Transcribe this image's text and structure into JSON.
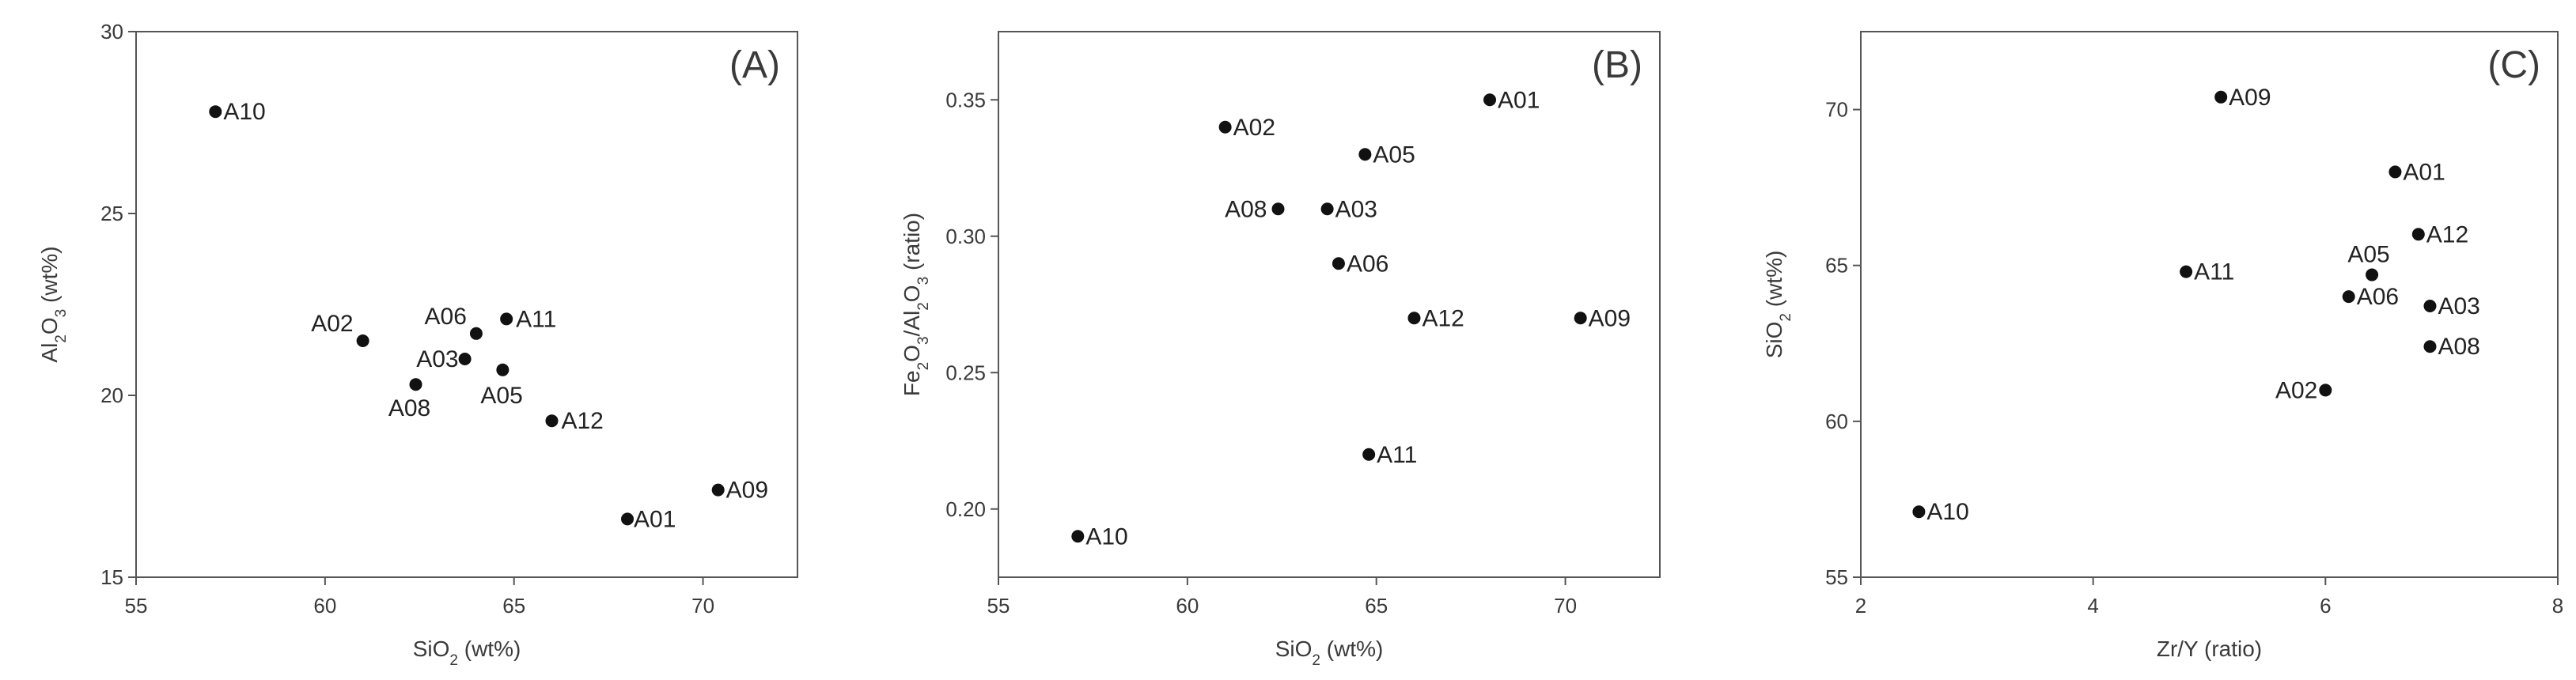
{
  "chart_data": [
    {
      "type": "scatter",
      "panel_label": "(A)",
      "xlabel": {
        "base": "SiO",
        "sub": "2",
        "tail": " (wt%)"
      },
      "ylabel": {
        "base": "Al",
        "sub": "2",
        "mid": "O",
        "sub2": "3",
        "tail": " (wt%)"
      },
      "xlim": [
        55,
        72.5
      ],
      "ylim": [
        15,
        30
      ],
      "xticks": [
        "55",
        "60",
        "65",
        "70"
      ],
      "yticks": [
        "15",
        "20",
        "25",
        "30"
      ],
      "points": [
        {
          "label": "A10",
          "x": 57.1,
          "y": 27.8
        },
        {
          "label": "A02",
          "x": 61.0,
          "y": 21.5
        },
        {
          "label": "A06",
          "x": 64.0,
          "y": 21.7
        },
        {
          "label": "A11",
          "x": 64.8,
          "y": 22.1
        },
        {
          "label": "A03",
          "x": 63.7,
          "y": 21.0
        },
        {
          "label": "A08",
          "x": 62.4,
          "y": 20.3
        },
        {
          "label": "A05",
          "x": 64.7,
          "y": 20.7
        },
        {
          "label": "A12",
          "x": 66.0,
          "y": 19.3
        },
        {
          "label": "A09",
          "x": 70.4,
          "y": 17.4
        },
        {
          "label": "A01",
          "x": 68.0,
          "y": 16.6
        }
      ]
    },
    {
      "type": "scatter",
      "panel_label": "(B)",
      "xlabel": {
        "base": "SiO",
        "sub": "2",
        "tail": " (wt%)"
      },
      "ylabel": {
        "base": "Fe",
        "sub": "2",
        "mid": "O",
        "sub2": "3",
        "mid2": "/Al",
        "sub3": "2",
        "mid3": "O",
        "sub4": "3",
        "tail": " (ratio)"
      },
      "xlim": [
        55,
        72.5
      ],
      "ylim": [
        0.175,
        0.375
      ],
      "xticks": [
        "55",
        "60",
        "65",
        "70"
      ],
      "yticks": [
        "0.20",
        "0.25",
        "0.30",
        "0.35"
      ],
      "points": [
        {
          "label": "A01",
          "x": 68.0,
          "y": 0.35
        },
        {
          "label": "A02",
          "x": 61.0,
          "y": 0.34
        },
        {
          "label": "A05",
          "x": 64.7,
          "y": 0.33
        },
        {
          "label": "A08",
          "x": 62.4,
          "y": 0.31
        },
        {
          "label": "A03",
          "x": 63.7,
          "y": 0.31
        },
        {
          "label": "A06",
          "x": 64.0,
          "y": 0.29
        },
        {
          "label": "A12",
          "x": 66.0,
          "y": 0.27
        },
        {
          "label": "A09",
          "x": 70.4,
          "y": 0.27
        },
        {
          "label": "A11",
          "x": 64.8,
          "y": 0.22
        },
        {
          "label": "A10",
          "x": 57.1,
          "y": 0.19
        }
      ]
    },
    {
      "type": "scatter",
      "panel_label": "(C)",
      "xlabel": {
        "base": "Zr/Y",
        "tail": " (ratio)"
      },
      "ylabel": {
        "base": "SiO",
        "sub": "2",
        "tail": " (wt%)"
      },
      "xlim": [
        2,
        8
      ],
      "ylim": [
        55,
        72.5
      ],
      "xticks": [
        "2",
        "4",
        "6",
        "8"
      ],
      "yticks": [
        "55",
        "60",
        "65",
        "70"
      ],
      "points": [
        {
          "label": "A09",
          "x": 5.1,
          "y": 70.4
        },
        {
          "label": "A01",
          "x": 6.6,
          "y": 68.0
        },
        {
          "label": "A12",
          "x": 6.8,
          "y": 66.0
        },
        {
          "label": "A05",
          "x": 6.4,
          "y": 64.7
        },
        {
          "label": "A11",
          "x": 4.8,
          "y": 64.8
        },
        {
          "label": "A06",
          "x": 6.2,
          "y": 64.0
        },
        {
          "label": "A03",
          "x": 6.9,
          "y": 63.7
        },
        {
          "label": "A08",
          "x": 6.9,
          "y": 62.4
        },
        {
          "label": "A02",
          "x": 6.0,
          "y": 61.0
        },
        {
          "label": "A10",
          "x": 2.5,
          "y": 57.1
        }
      ]
    }
  ]
}
